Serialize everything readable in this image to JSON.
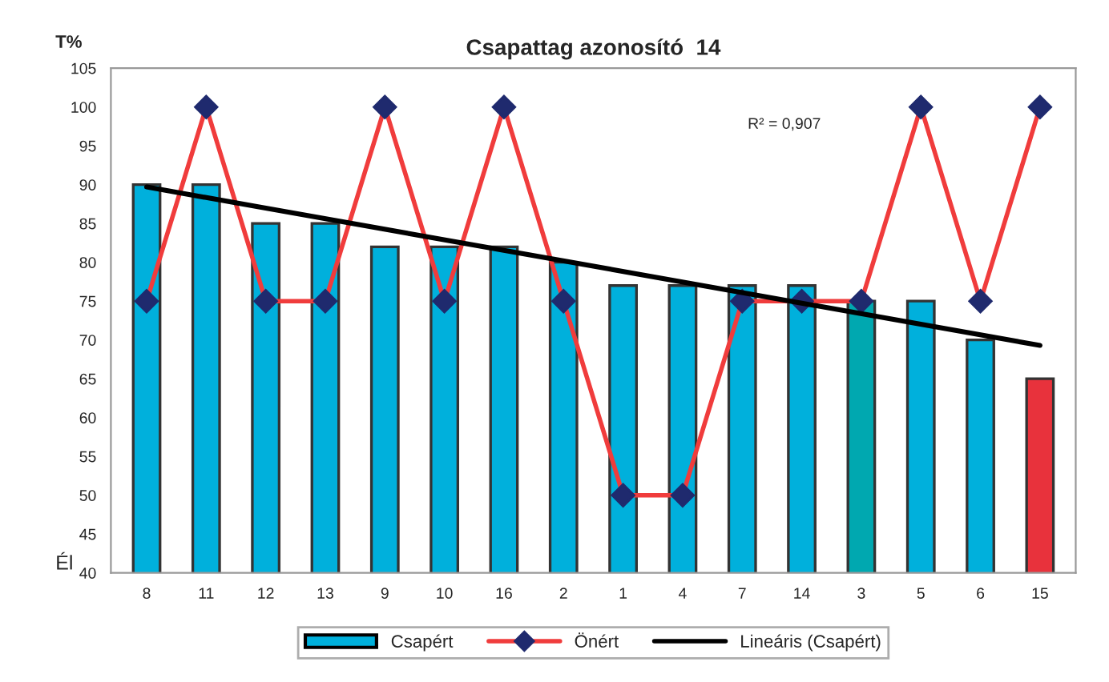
{
  "chart_data": {
    "type": "bar",
    "title": "Csapattag azonosító  14",
    "ylabel": "T%",
    "xlabel": "Él",
    "categories": [
      "8",
      "11",
      "12",
      "13",
      "9",
      "10",
      "16",
      "2",
      "1",
      "4",
      "7",
      "14",
      "3",
      "5",
      "6",
      "15"
    ],
    "series": [
      {
        "name": "Csapért",
        "color": "#00b0dc",
        "colors": [
          "#00b0dc",
          "#00b0dc",
          "#00b0dc",
          "#00b0dc",
          "#00b0dc",
          "#00b0dc",
          "#00b0dc",
          "#00b0dc",
          "#00b0dc",
          "#00b0dc",
          "#00b0dc",
          "#00b0dc",
          "#00a8b0",
          "#00b0dc",
          "#00b0dc",
          "#e8323c"
        ],
        "values": [
          90,
          90,
          85,
          85,
          82,
          82,
          82,
          80,
          77,
          77,
          77,
          77,
          75,
          75,
          70,
          65
        ]
      },
      {
        "name": "Önért",
        "type": "line",
        "color": "#f03c3c",
        "marker": "diamond",
        "values": [
          75,
          100,
          75,
          75,
          100,
          75,
          100,
          75,
          50,
          50,
          75,
          75,
          75,
          100,
          75,
          100
        ]
      },
      {
        "name": "Lineáris (Csapért)",
        "type": "line",
        "color": "#000000",
        "x": [
          "8",
          "15"
        ],
        "values": [
          89.7,
          69.3
        ]
      }
    ],
    "ylim": [
      40,
      105
    ],
    "yticks": [
      40,
      45,
      50,
      55,
      60,
      65,
      70,
      75,
      80,
      85,
      90,
      95,
      100,
      105
    ],
    "annotations": [
      "R² = 0,907"
    ],
    "grid": false,
    "legend": "bottom"
  }
}
